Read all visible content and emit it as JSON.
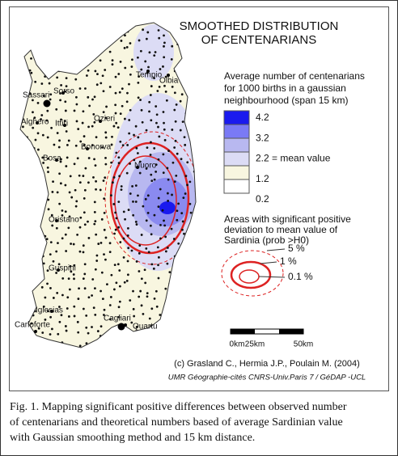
{
  "title": [
    "SMOOTHED DISTRIBUTION",
    "OF CENTENARIANS"
  ],
  "legend": {
    "title": [
      "Average number of centenarians",
      "for 1000 births in a gaussian",
      "neighbourhood (span 15 km)"
    ],
    "labels": [
      "4.2",
      "3.2",
      "2.2 = mean value",
      "1.2",
      "0.2"
    ]
  },
  "significance": {
    "title": [
      "Areas with significant positive",
      "deviation to mean value of",
      "Sardinia (prob >H0)"
    ],
    "labels": [
      "5 %",
      "1 %",
      "0.1 %"
    ]
  },
  "places": [
    "Tempio",
    "Olbia",
    "Sassari",
    "Sorso",
    "Alghero",
    "Ittiri",
    "Ozieri",
    "Bonorva",
    "Bosa",
    "Nuoro",
    "Oristano",
    "Guspini",
    "Iglesias",
    "Carloforte",
    "Cagliari",
    "Quartu"
  ],
  "scale": [
    "0km",
    "25km",
    "50km"
  ],
  "credits": [
    "(c) Grasland C., Hermia J.P., Poulain M. (2004)",
    "UMR Géographie-cités CNRS-Univ.Paris 7 / GéDAP -UCL"
  ],
  "caption": [
    "Fig. 1. Mapping significant positive differences between observed number",
    "of centenarians and theoretical numbers based of average Sardinian value",
    "with Gaussian smoothing method and 15 km distance."
  ]
}
